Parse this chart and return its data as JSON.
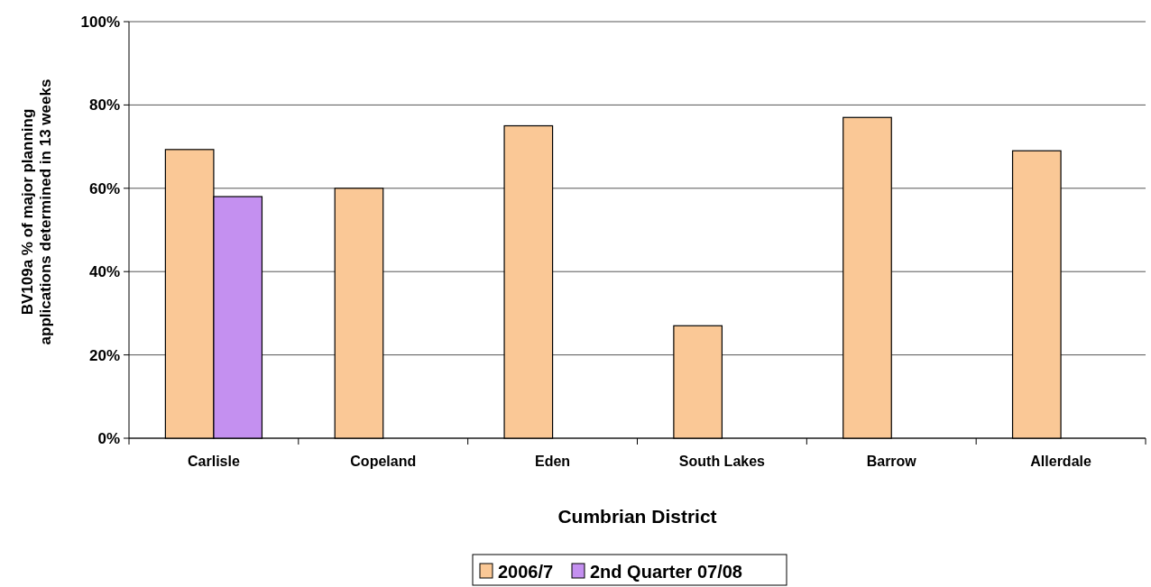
{
  "chart_data": {
    "type": "bar",
    "xlabel": "Cumbrian District",
    "ylabel": "BV109a % of major planning applications determined in 13 weeks",
    "categories": [
      "Carlisle",
      "Copeland",
      "Eden",
      "South Lakes",
      "Barrow",
      "Allerdale"
    ],
    "series": [
      {
        "name": "2006/7",
        "color": "#fac896",
        "values": [
          69.3,
          60,
          75,
          27,
          77,
          69
        ]
      },
      {
        "name": "2nd Quarter 07/08",
        "color": "#c490f0",
        "values": [
          58,
          null,
          null,
          null,
          null,
          null
        ]
      }
    ],
    "ylim": [
      0,
      100
    ],
    "yticks": [
      {
        "value": 0,
        "label": "0%"
      },
      {
        "value": 20,
        "label": "20%"
      },
      {
        "value": 40,
        "label": "40%"
      },
      {
        "value": 60,
        "label": "60%"
      },
      {
        "value": 80,
        "label": "80%"
      },
      {
        "value": 100,
        "label": "100%"
      }
    ],
    "grid": "y",
    "legend": "bottom"
  }
}
